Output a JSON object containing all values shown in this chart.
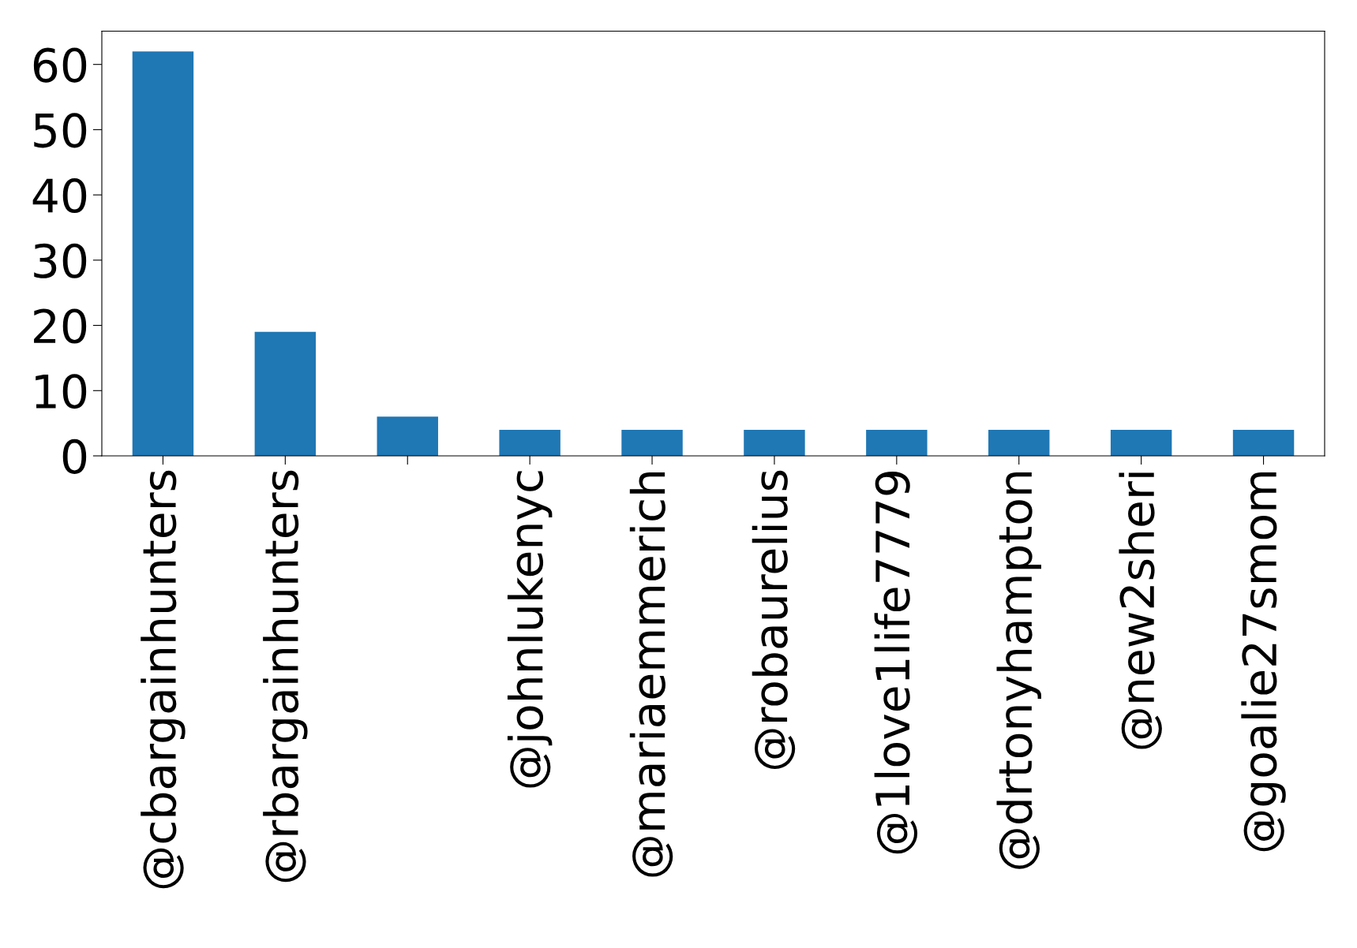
{
  "chart_data": {
    "type": "bar",
    "categories": [
      "@cbargainhunters",
      "@rbargainhunters",
      null,
      "@johnlukenyc",
      "@mariaemmerich",
      "@robaurelius",
      "@1love1life7779",
      "@drtonyhampton",
      "@new2sheri",
      "@goalie27smom"
    ],
    "values": [
      62,
      19,
      6,
      4,
      4,
      4,
      4,
      4,
      4,
      4
    ],
    "color": "#1f77b4",
    "ylim": [
      0,
      65.1
    ],
    "yticks": [
      0,
      10,
      20,
      30,
      40,
      50,
      60
    ],
    "grid": false,
    "legend": false
  }
}
